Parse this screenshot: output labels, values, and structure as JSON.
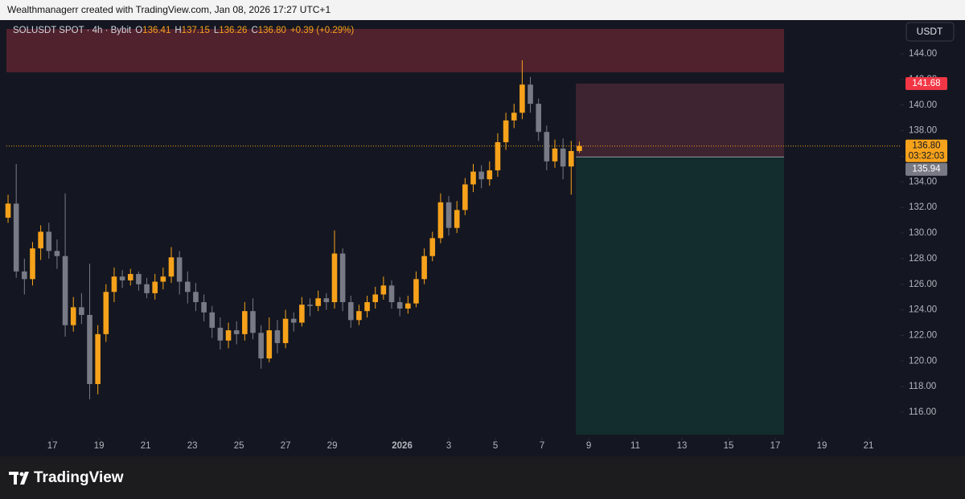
{
  "header": {
    "text": "Wealthmanagerr created with TradingView.com, Jan 08, 2026 17:27 UTC+1"
  },
  "footer": {
    "brand": "TradingView"
  },
  "chart_data": {
    "type": "candlestick",
    "legend": {
      "symbol": "SOLUSDT SPOT · 4h · Bybit",
      "fields": [
        {
          "key": "O",
          "value": "136.41"
        },
        {
          "key": "H",
          "value": "137.15"
        },
        {
          "key": "L",
          "value": "136.26"
        },
        {
          "key": "C",
          "value": "136.80"
        }
      ],
      "change": "+0.39 (+0.29%)"
    },
    "currency": "USDT",
    "x": [
      -1.9,
      -1.55,
      -1.2,
      -0.85,
      -0.5,
      -0.15,
      0.2,
      0.55,
      0.9,
      1.25,
      1.6,
      1.95,
      2.3,
      2.65,
      3,
      3.35,
      3.7,
      4.05,
      4.4,
      4.75,
      5.1,
      5.45,
      5.8,
      6.15,
      6.5,
      6.85,
      7.2,
      7.55,
      7.9,
      8.25,
      8.6,
      8.95,
      9.3,
      9.65,
      10,
      10.35,
      10.7,
      11.05,
      11.4,
      11.75,
      12.1,
      12.45,
      12.8,
      13.15,
      13.5,
      13.85,
      14.2,
      14.55,
      14.9,
      15.25,
      15.6,
      15.95,
      16.3,
      16.65,
      17,
      17.35,
      17.7,
      18.05,
      18.4,
      18.75,
      19.1,
      19.45,
      19.8,
      20.15,
      20.5,
      20.85,
      21.2,
      21.55,
      21.9,
      22.25,
      22.6
    ],
    "open": [
      131.2,
      132.3,
      127,
      126.4,
      128.8,
      130.1,
      128.6,
      128.2,
      122.8,
      124.2,
      123.6,
      118.2,
      122.1,
      125.4,
      126.6,
      126.3,
      126.8,
      126,
      125.3,
      126.2,
      126.6,
      128.1,
      126.2,
      125.4,
      124.6,
      123.8,
      122.6,
      121.6,
      122.4,
      122.1,
      123.9,
      122.2,
      120.2,
      122.4,
      121.4,
      123.3,
      123,
      124.4,
      124.3,
      124.9,
      124.6,
      128.4,
      124.6,
      123.2,
      123.9,
      124.6,
      125.2,
      125.9,
      124.6,
      124.1,
      124.5,
      126.4,
      128.2,
      129.6,
      132.4,
      130.4,
      131.8,
      133.8,
      134.8,
      134.2,
      134.9,
      137.1,
      138.8,
      139.4,
      141.6,
      140.1,
      137.9,
      135.6,
      136.6,
      135.2,
      136.41
    ],
    "high": [
      133,
      135.4,
      128,
      129.3,
      130.6,
      130.8,
      129.5,
      133.1,
      125,
      125.3,
      127.6,
      122.8,
      126,
      127.3,
      127.1,
      127.2,
      127,
      126.5,
      126.8,
      127.3,
      128.9,
      128.6,
      127,
      126.1,
      125.2,
      124.3,
      123.4,
      123,
      123.1,
      124.6,
      124.9,
      122.8,
      123.4,
      123.2,
      124,
      123.8,
      125,
      124.9,
      125.5,
      125.3,
      130.2,
      128.8,
      125.1,
      124.4,
      125.1,
      125.8,
      126.6,
      126.3,
      125,
      125.1,
      127,
      128.8,
      130.1,
      133.1,
      132.9,
      132.5,
      134.3,
      135.4,
      135.3,
      135.6,
      137.8,
      139.4,
      140.1,
      143.5,
      142.2,
      140.5,
      138.4,
      137.3,
      137.4,
      137.2,
      137.15
    ],
    "low": [
      130.8,
      126.5,
      125.2,
      125.9,
      127.9,
      128,
      127.2,
      121.9,
      122.3,
      122.9,
      117,
      117.4,
      121.5,
      124.6,
      125.7,
      125.9,
      125.5,
      124.9,
      124.8,
      125.6,
      126.1,
      125.2,
      124.5,
      123.9,
      123.1,
      121.8,
      120.9,
      121,
      121.3,
      121.6,
      121.7,
      119.4,
      119.9,
      120.6,
      121,
      122.3,
      122.7,
      123.5,
      123.9,
      124,
      124.1,
      123.9,
      122.6,
      122.8,
      123.4,
      124.1,
      124.8,
      124.1,
      123.5,
      123.7,
      124.2,
      126,
      127.8,
      129.2,
      129.8,
      130,
      131.4,
      133.2,
      133.5,
      133.7,
      134.4,
      136.5,
      138.2,
      138.9,
      139.4,
      137.2,
      134.9,
      135.1,
      134.2,
      133,
      136.26
    ],
    "close": [
      132.3,
      127,
      126.4,
      128.8,
      130.1,
      128.6,
      128.2,
      122.8,
      124.2,
      123.6,
      118.2,
      122.1,
      125.4,
      126.6,
      126.3,
      126.8,
      126,
      125.3,
      126.2,
      126.6,
      128.1,
      126.2,
      125.4,
      124.6,
      123.8,
      122.6,
      121.6,
      122.4,
      122.1,
      123.9,
      122.2,
      120.2,
      122.4,
      121.4,
      123.3,
      123,
      124.4,
      124.3,
      124.9,
      124.6,
      128.4,
      124.6,
      123.2,
      123.9,
      124.6,
      125.2,
      125.9,
      124.6,
      124.1,
      124.5,
      126.4,
      128.2,
      129.6,
      132.4,
      130.4,
      131.8,
      133.8,
      134.8,
      134.2,
      134.9,
      137.1,
      138.8,
      139.4,
      141.6,
      140.1,
      137.9,
      135.6,
      136.6,
      135.2,
      136.41,
      136.8
    ],
    "up_color": "#f7a21b",
    "down_color": "#787b86",
    "xlim": [
      -1.97,
      36.38
    ],
    "xticks": [
      {
        "value": 0,
        "label": "17"
      },
      {
        "value": 2,
        "label": "19"
      },
      {
        "value": 4,
        "label": "21"
      },
      {
        "value": 6,
        "label": "23"
      },
      {
        "value": 8,
        "label": "25"
      },
      {
        "value": 10,
        "label": "27"
      },
      {
        "value": 12,
        "label": "29"
      },
      {
        "value": 15,
        "label": "2026"
      },
      {
        "value": 17,
        "label": "3"
      },
      {
        "value": 19,
        "label": "5"
      },
      {
        "value": 21,
        "label": "7"
      },
      {
        "value": 23,
        "label": "9"
      },
      {
        "value": 25,
        "label": "11"
      },
      {
        "value": 27,
        "label": "13"
      },
      {
        "value": 29,
        "label": "15"
      },
      {
        "value": 31,
        "label": "17"
      },
      {
        "value": 33,
        "label": "19"
      },
      {
        "value": 35,
        "label": "21"
      }
    ],
    "ylim": [
      113.99,
      146.64
    ],
    "yticks": [
      {
        "value": 116,
        "label": "116.00"
      },
      {
        "value": 118,
        "label": "118.00"
      },
      {
        "value": 120,
        "label": "120.00"
      },
      {
        "value": 122,
        "label": "122.00"
      },
      {
        "value": 124,
        "label": "124.00"
      },
      {
        "value": 126,
        "label": "126.00"
      },
      {
        "value": 128,
        "label": "128.00"
      },
      {
        "value": 130,
        "label": "130.00"
      },
      {
        "value": 132,
        "label": "132.00"
      },
      {
        "value": 134,
        "label": "134.00"
      },
      {
        "value": 136,
        "label": "136.00"
      },
      {
        "value": 138,
        "label": "138.00"
      },
      {
        "value": 140,
        "label": "140.00"
      },
      {
        "value": 142,
        "label": "142.00"
      },
      {
        "value": 144,
        "label": "144.00"
      }
    ],
    "zone": {
      "top": 145.95,
      "bottom": 142.56,
      "x_start": -1.97,
      "x_end": 31.38,
      "color": "#5a2430"
    },
    "position": {
      "entry": 135.94,
      "stop": 141.68,
      "target": 114.24,
      "x_start": 22.45,
      "x_end": 31.38,
      "stop_color": "#3e2330",
      "target_color": "#132c2e"
    },
    "last_price": {
      "value": 136.8,
      "label": "136.80",
      "countdown": "03:32:03",
      "color": "#f7a21b"
    }
  }
}
